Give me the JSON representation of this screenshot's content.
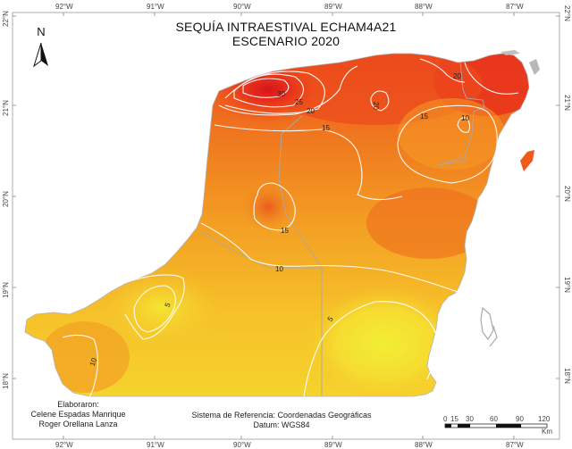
{
  "title": {
    "line1": "SEQUÍA INTRAESTIVAL ECHAM4A21",
    "line2": "ESCENARIO 2020"
  },
  "north_arrow": {
    "label": "N",
    "icon": "north-arrow-icon"
  },
  "longitude_ticks": [
    "92°W",
    "91°W",
    "90°W",
    "89°W",
    "88°W",
    "87°W"
  ],
  "latitude_ticks": [
    "22°N",
    "21°N",
    "20°N",
    "19°N",
    "18°N"
  ],
  "contour_labels": {
    "c30": "30",
    "c25": "25",
    "c20a": "20",
    "c20b": "20",
    "c20c": "20",
    "c15a": "15",
    "c15b": "15",
    "c15c": "15",
    "c10a": "10",
    "c10b": "10",
    "c10c": "10",
    "c5a": "5",
    "c5b": "5"
  },
  "credits": {
    "heading": "Elaboraron:",
    "author1": "Celene Espadas Manrique",
    "author2": "Roger Orellana Lanza"
  },
  "reference": {
    "line1": "Sistema de Referencia: Coordenadas Geográficas",
    "line2": "Datum: WGS84"
  },
  "scale": {
    "labels": [
      "0",
      "15",
      "30",
      "60",
      "90",
      "120"
    ],
    "unit": "Km"
  },
  "colors": {
    "high": "#e8321c",
    "mid_high": "#f0701e",
    "mid": "#f5a421",
    "low": "#f7cf2a",
    "lowest": "#f2ee34",
    "contour": "#ffffff",
    "border": "#b0b0b0"
  }
}
